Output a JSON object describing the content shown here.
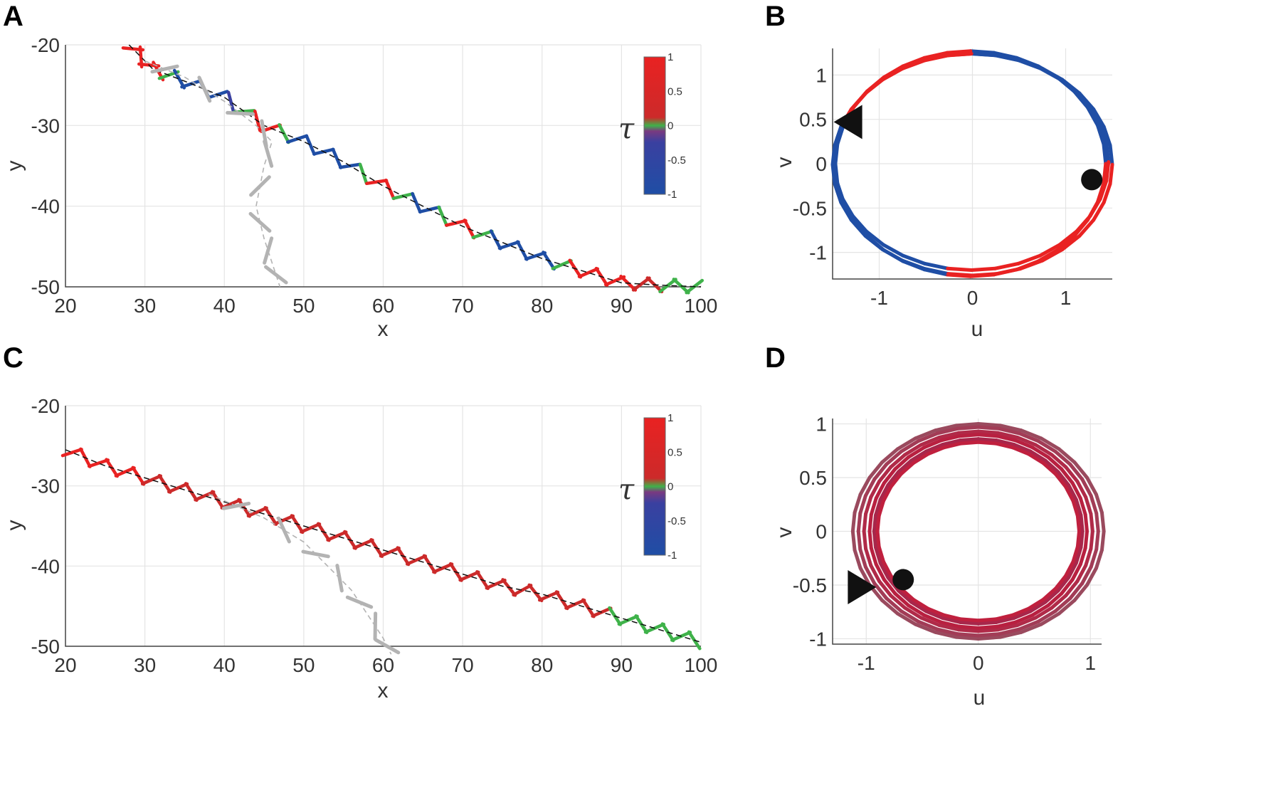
{
  "panels": {
    "A": {
      "letter": "A"
    },
    "B": {
      "letter": "B"
    },
    "C": {
      "letter": "C"
    },
    "D": {
      "letter": "D"
    }
  },
  "colorbar": {
    "label": "τ",
    "ticks": [
      "1",
      "0.5",
      "0",
      "-0.5",
      "-1"
    ],
    "tick_values": [
      1,
      0.5,
      0,
      -0.5,
      -1
    ],
    "colors": [
      "#1f4ea5",
      "#3a40a0",
      "#7a3a80",
      "#3fb24a",
      "#cc2a2a",
      "#e92222"
    ]
  },
  "chart_data": [
    {
      "panel": "A",
      "type": "line",
      "xlabel": "x",
      "ylabel": "y",
      "xlim": [
        20,
        100
      ],
      "ylim": [
        -50,
        -20
      ],
      "xticks": [
        "20",
        "30",
        "40",
        "50",
        "60",
        "70",
        "80",
        "90",
        "100"
      ],
      "yticks": [
        "-20",
        "-30",
        "-40",
        "-50"
      ],
      "grid": true,
      "colorbar": true,
      "colorbar_placement": "top-right",
      "series": [
        {
          "role": "swimmer-path",
          "style": "dashed",
          "x": [
            28,
            31,
            35,
            40,
            45,
            50,
            55,
            60,
            65,
            70,
            75,
            80,
            85,
            90,
            95,
            100
          ],
          "y": [
            -20,
            -23,
            -24.5,
            -26.5,
            -30,
            -32,
            -34.5,
            -37.5,
            -40,
            -42.5,
            -44.5,
            -46.5,
            -48,
            -49.5,
            -49.8,
            -50
          ],
          "tau": [
            1,
            1,
            -1,
            -0.9,
            1,
            -1,
            -1,
            1,
            -1,
            1,
            -1,
            -1,
            1,
            1,
            0,
            0
          ]
        },
        {
          "role": "grey-trail",
          "style": "dashed",
          "x": [
            30,
            35,
            40,
            44,
            46,
            45,
            44,
            45,
            46,
            47
          ],
          "y": [
            -22,
            -24,
            -27,
            -30,
            -32,
            -35,
            -40,
            -44,
            -47,
            -50
          ]
        }
      ]
    },
    {
      "panel": "B",
      "type": "line",
      "xlabel": "u",
      "ylabel": "v",
      "xlim": [
        -1.5,
        1.5
      ],
      "ylim": [
        -1.3,
        1.3
      ],
      "xticks": [
        "-1",
        "0",
        "1"
      ],
      "yticks": [
        "1",
        "0.5",
        "0",
        "-0.5",
        "-1"
      ],
      "grid": true,
      "series": [
        {
          "role": "phase-loop-1",
          "rx": 1.45,
          "ry": 1.27,
          "cx": -0.02,
          "cy": 0.0
        },
        {
          "role": "phase-loop-2",
          "rx": 1.5,
          "ry": 1.25,
          "cx": 0.0,
          "cy": -0.01
        },
        {
          "role": "phase-loop-3",
          "rx": 1.47,
          "ry": 1.22,
          "cx": -0.01,
          "cy": 0.02
        }
      ],
      "markers": [
        {
          "shape": "triangle-left",
          "u": -1.32,
          "v": 0.47
        },
        {
          "shape": "circle",
          "u": 1.28,
          "v": -0.18
        }
      ]
    },
    {
      "panel": "C",
      "type": "line",
      "xlabel": "x",
      "ylabel": "y",
      "xlim": [
        20,
        100
      ],
      "ylim": [
        -50,
        -20
      ],
      "xticks": [
        "20",
        "30",
        "40",
        "50",
        "60",
        "70",
        "80",
        "90",
        "100"
      ],
      "yticks": [
        "-20",
        "-30",
        "-40",
        "-50"
      ],
      "grid": true,
      "colorbar": true,
      "colorbar_placement": "top-right",
      "series": [
        {
          "role": "swimmer-path",
          "style": "dashed",
          "x": [
            20,
            25,
            30,
            35,
            40,
            45,
            50,
            55,
            60,
            65,
            70,
            75,
            80,
            85,
            90,
            95,
            100
          ],
          "y": [
            -25.5,
            -27.5,
            -29,
            -30.5,
            -32,
            -33.5,
            -35,
            -36.5,
            -38,
            -39.5,
            -41,
            -42.5,
            -43.5,
            -45,
            -46.5,
            -48,
            -49.5
          ],
          "tau": [
            0.65,
            0.65,
            0.6,
            0.6,
            0.6,
            0.6,
            0.6,
            0.6,
            0.6,
            0.6,
            0.6,
            0.6,
            0.55,
            0.35,
            0.05,
            0,
            0
          ]
        },
        {
          "role": "grey-trail",
          "style": "dashed",
          "x": [
            38,
            45,
            50,
            53,
            56,
            58,
            60,
            61
          ],
          "y": [
            -31,
            -34,
            -37,
            -40,
            -43,
            -46,
            -49,
            -51
          ]
        }
      ]
    },
    {
      "panel": "D",
      "type": "line",
      "xlabel": "u",
      "ylabel": "v",
      "xlim": [
        -1.3,
        1.1
      ],
      "ylim": [
        -1.05,
        1.05
      ],
      "xticks": [
        "-1",
        "0",
        "1"
      ],
      "yticks": [
        "1",
        "0.5",
        "0",
        "-0.5",
        "-1"
      ],
      "grid": true,
      "series": [
        {
          "role": "phase-loop-1",
          "rx": 1.12,
          "ry": 1.0
        },
        {
          "role": "phase-loop-2",
          "rx": 1.07,
          "ry": 0.97
        },
        {
          "role": "phase-loop-3",
          "rx": 1.02,
          "ry": 0.93
        },
        {
          "role": "phase-loop-4",
          "rx": 0.97,
          "ry": 0.9
        },
        {
          "role": "phase-loop-5",
          "rx": 0.93,
          "ry": 0.86
        },
        {
          "role": "phase-loop-6",
          "rx": 0.9,
          "ry": 0.83
        }
      ],
      "markers": [
        {
          "shape": "triangle-right",
          "u": -1.05,
          "v": -0.52
        },
        {
          "shape": "circle",
          "u": -0.67,
          "v": -0.45
        }
      ]
    }
  ]
}
